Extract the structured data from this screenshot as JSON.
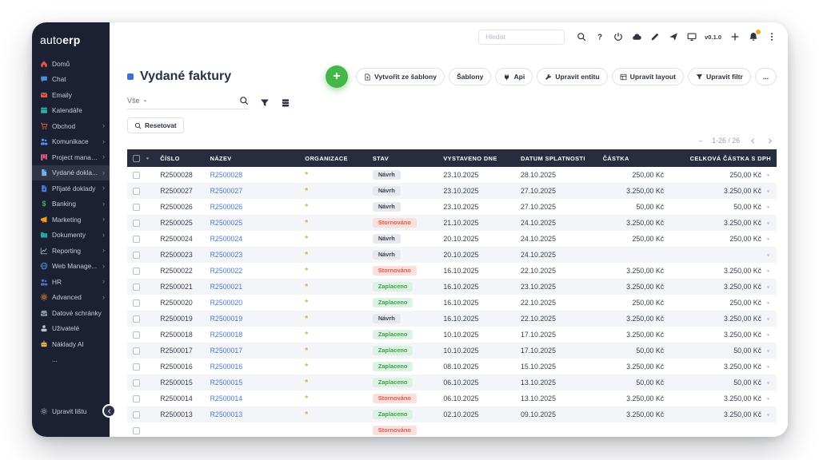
{
  "app": {
    "logo": {
      "light": "auto",
      "bold": "erp"
    }
  },
  "topbar": {
    "search": {
      "placeholder": "Hledat"
    },
    "icons": [
      "search",
      "help",
      "power",
      "cloud",
      "pencil",
      "send",
      "monitor"
    ],
    "version": "v0.1.0",
    "icons_after": [
      "plus",
      "bell",
      "kebab"
    ],
    "bell_badge_color": "#f5a623"
  },
  "sidebar": {
    "items": [
      {
        "label": "Domů",
        "icon": "home",
        "color": "#e2574c"
      },
      {
        "label": "Chat",
        "icon": "chat",
        "color": "#4a90d9"
      },
      {
        "label": "Emaily",
        "icon": "mail",
        "color": "#e2574c"
      },
      {
        "label": "Kalendáře",
        "icon": "calendar",
        "color": "#2bb3a3"
      },
      {
        "label": "Obchod",
        "icon": "cart",
        "color": "#e2574c",
        "arrow": true
      },
      {
        "label": "Komunikace",
        "icon": "people",
        "color": "#5b8def",
        "arrow": true
      },
      {
        "label": "Project manag...",
        "icon": "kanban",
        "color": "#e25c7a",
        "arrow": true
      },
      {
        "label": "Vydané dokla...",
        "icon": "doc",
        "color": "#6fb3e8",
        "arrow": true,
        "active": true
      },
      {
        "label": "Přijaté doklady",
        "icon": "doc-in",
        "color": "#4a7de0",
        "arrow": true
      },
      {
        "label": "Banking",
        "icon": "dollar",
        "color": "#4caf50",
        "arrow": true
      },
      {
        "label": "Marketing",
        "icon": "megaphone",
        "color": "#f39c12",
        "arrow": true
      },
      {
        "label": "Dokumenty",
        "icon": "folder",
        "color": "#26a69a",
        "arrow": true
      },
      {
        "label": "Reporting",
        "icon": "chart",
        "color": "#9fb3c8",
        "arrow": true
      },
      {
        "label": "Web Manage...",
        "icon": "globe",
        "color": "#4a90d9",
        "arrow": true
      },
      {
        "label": "HR",
        "icon": "people",
        "color": "#5c6bc0",
        "arrow": true
      },
      {
        "label": "Advanced",
        "icon": "gear",
        "color": "#ef8a3c",
        "arrow": true
      },
      {
        "label": "Datové schránky",
        "icon": "inbox",
        "color": "#8a94a8"
      },
      {
        "label": "Uživatelé",
        "icon": "user",
        "color": "#b9c2d4"
      },
      {
        "label": "Náklady AI",
        "icon": "robot",
        "color": "#f0b44c"
      },
      {
        "label": "...",
        "icon": null,
        "color": "#8a94a8"
      },
      {
        "label": "Upravit lištu",
        "icon": "gear",
        "color": "#8a94a8",
        "bottom": true
      }
    ]
  },
  "page": {
    "title": "Vydané faktury",
    "add_button": "+",
    "filter": {
      "select_label": "Vše",
      "search_value": ""
    },
    "reset_label": "Resetovat",
    "toolbar": [
      {
        "label": "Vytvořit ze šablony",
        "icon": "template"
      },
      {
        "label": "Šablony",
        "icon": null
      },
      {
        "label": "Api",
        "icon": "plug"
      },
      {
        "label": "Upravit entitu",
        "icon": "wrench"
      },
      {
        "label": "Upravit layout",
        "icon": "layout"
      },
      {
        "label": "Upravit filtr",
        "icon": "funnel"
      },
      {
        "label": "...",
        "icon": null
      }
    ],
    "pagination": {
      "dash": "–",
      "range": "1-26 / 26"
    }
  },
  "table": {
    "columns": [
      "ČÍSLO",
      "NÁZEV",
      "ORGANIZACE",
      "STAV",
      "VYSTAVENO DNE",
      "DATUM SPLATNOSTI",
      "ČÁSTKA",
      "CELKOVÁ ČÁSTKA S DPH"
    ],
    "org_marker": "*",
    "statuses": {
      "navrh": {
        "label": "Návrh",
        "bg": "#e7e9ee",
        "fg": "#3a4050"
      },
      "stornovano": {
        "label": "Stornováno",
        "bg": "#fbdfdb",
        "fg": "#e0584d"
      },
      "zaplaceno": {
        "label": "Zaplaceno",
        "bg": "#dcf2e2",
        "fg": "#43a047"
      }
    },
    "rows": [
      {
        "cislo": "R2500028",
        "nazev": "R2500028",
        "stav": "navrh",
        "vystaveno": "23.10.2025",
        "splatnost": "28.10.2025",
        "castka": "250,00 Kč",
        "celkem": "250,00 Kč"
      },
      {
        "cislo": "R2500027",
        "nazev": "R2500027",
        "stav": "navrh",
        "vystaveno": "23.10.2025",
        "splatnost": "27.10.2025",
        "castka": "3.250,00 Kč",
        "celkem": "3.250,00 Kč"
      },
      {
        "cislo": "R2500026",
        "nazev": "R2500026",
        "stav": "navrh",
        "vystaveno": "23.10.2025",
        "splatnost": "27.10.2025",
        "castka": "50,00 Kč",
        "celkem": "50,00 Kč"
      },
      {
        "cislo": "R2500025",
        "nazev": "R2500025",
        "stav": "stornovano",
        "vystaveno": "21.10.2025",
        "splatnost": "24.10.2025",
        "castka": "3.250,00 Kč",
        "celkem": "3.250,00 Kč"
      },
      {
        "cislo": "R2500024",
        "nazev": "R2500024",
        "stav": "navrh",
        "vystaveno": "20.10.2025",
        "splatnost": "24.10.2025",
        "castka": "250,00 Kč",
        "celkem": "250,00 Kč"
      },
      {
        "cislo": "R2500023",
        "nazev": "R2500023",
        "stav": "navrh",
        "vystaveno": "20.10.2025",
        "splatnost": "24.10.2025",
        "castka": "",
        "celkem": ""
      },
      {
        "cislo": "R2500022",
        "nazev": "R2500022",
        "stav": "stornovano",
        "vystaveno": "16.10.2025",
        "splatnost": "22.10.2025",
        "castka": "3.250,00 Kč",
        "celkem": "3.250,00 Kč"
      },
      {
        "cislo": "R2500021",
        "nazev": "R2500021",
        "stav": "zaplaceno",
        "vystaveno": "16.10.2025",
        "splatnost": "23.10.2025",
        "castka": "3.250,00 Kč",
        "celkem": "3.250,00 Kč"
      },
      {
        "cislo": "R2500020",
        "nazev": "R2500020",
        "stav": "zaplaceno",
        "vystaveno": "16.10.2025",
        "splatnost": "22.10.2025",
        "castka": "250,00 Kč",
        "celkem": "250,00 Kč"
      },
      {
        "cislo": "R2500019",
        "nazev": "R2500019",
        "stav": "navrh",
        "vystaveno": "16.10.2025",
        "splatnost": "22.10.2025",
        "castka": "3.250,00 Kč",
        "celkem": "3.250,00 Kč"
      },
      {
        "cislo": "R2500018",
        "nazev": "R2500018",
        "stav": "zaplaceno",
        "vystaveno": "10.10.2025",
        "splatnost": "17.10.2025",
        "castka": "3.250,00 Kč",
        "celkem": "3.250,00 Kč"
      },
      {
        "cislo": "R2500017",
        "nazev": "R2500017",
        "stav": "zaplaceno",
        "vystaveno": "10.10.2025",
        "splatnost": "17.10.2025",
        "castka": "50,00 Kč",
        "celkem": "50,00 Kč"
      },
      {
        "cislo": "R2500016",
        "nazev": "R2500016",
        "stav": "zaplaceno",
        "vystaveno": "08.10.2025",
        "splatnost": "15.10.2025",
        "castka": "3.250,00 Kč",
        "celkem": "3.250,00 Kč"
      },
      {
        "cislo": "R2500015",
        "nazev": "R2500015",
        "stav": "zaplaceno",
        "vystaveno": "06.10.2025",
        "splatnost": "13.10.2025",
        "castka": "50,00 Kč",
        "celkem": "50,00 Kč"
      },
      {
        "cislo": "R2500014",
        "nazev": "R2500014",
        "stav": "stornovano",
        "vystaveno": "06.10.2025",
        "splatnost": "13.10.2025",
        "castka": "3.250,00 Kč",
        "celkem": "3.250,00 Kč"
      },
      {
        "cislo": "R2500013",
        "nazev": "R2500013",
        "stav": "zaplaceno",
        "vystaveno": "02.10.2025",
        "splatnost": "09.10.2025",
        "castka": "3.250,00 Kč",
        "celkem": "3.250,00 Kč"
      },
      {
        "cislo": "",
        "nazev": "",
        "stav": "stornovano",
        "vystaveno": "",
        "splatnost": "",
        "castka": "",
        "celkem": "",
        "partial": true
      }
    ]
  }
}
